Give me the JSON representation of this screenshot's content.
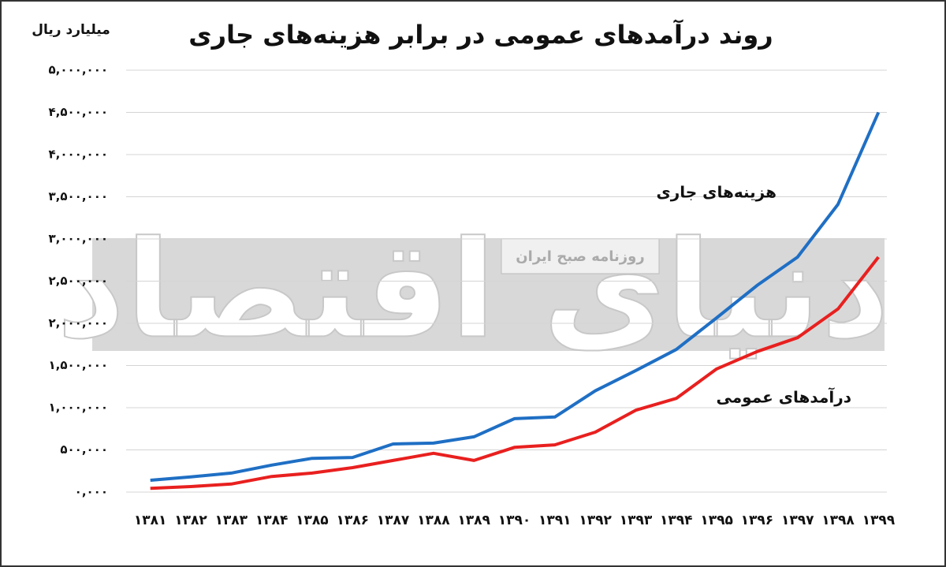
{
  "chart_data": {
    "type": "line",
    "title": "روند درآمدهای عمومی در برابر هزینه‌های جاری",
    "y_label": "میلیارد ریال",
    "categories": [
      "۱۳۸۱",
      "۱۳۸۲",
      "۱۳۸۳",
      "۱۳۸۴",
      "۱۳۸۵",
      "۱۳۸۶",
      "۱۳۸۷",
      "۱۳۸۸",
      "۱۳۸۹",
      "۱۳۹۰",
      "۱۳۹۱",
      "۱۳۹۲",
      "۱۳۹۳",
      "۱۳۹۴",
      "۱۳۹۵",
      "۱۳۹۶",
      "۱۳۹۷",
      "۱۳۹۸",
      "۱۳۹۹"
    ],
    "series": [
      {
        "name": "هزینه‌های جاری",
        "color": "#1f6fc4",
        "values": [
          140000,
          180000,
          225000,
          320000,
          400000,
          410000,
          570000,
          580000,
          655000,
          870000,
          890000,
          1200000,
          1440000,
          1690000,
          2065000,
          2450000,
          2785000,
          3410000,
          4500000
        ]
      },
      {
        "name": "درآمدهای عمومی",
        "color": "#e8201f",
        "values": [
          45000,
          65000,
          95000,
          185000,
          225000,
          290000,
          375000,
          460000,
          375000,
          530000,
          560000,
          710000,
          970000,
          1110000,
          1460000,
          1665000,
          1830000,
          2170000,
          2785000
        ]
      }
    ],
    "ylim": [
      0,
      5000000
    ],
    "yticks": [
      {
        "value": 0,
        "label": "۰,۰۰۰"
      },
      {
        "value": 500000,
        "label": "۵۰۰,۰۰۰"
      },
      {
        "value": 1000000,
        "label": "۱,۰۰۰,۰۰۰"
      },
      {
        "value": 1500000,
        "label": "۱,۵۰۰,۰۰۰"
      },
      {
        "value": 2000000,
        "label": "۲,۰۰۰,۰۰۰"
      },
      {
        "value": 2500000,
        "label": "۲,۵۰۰,۰۰۰"
      },
      {
        "value": 3000000,
        "label": "۳,۰۰۰,۰۰۰"
      },
      {
        "value": 3500000,
        "label": "۳,۵۰۰,۰۰۰"
      },
      {
        "value": 4000000,
        "label": "۴,۰۰۰,۰۰۰"
      },
      {
        "value": 4500000,
        "label": "۴,۵۰۰,۰۰۰"
      },
      {
        "value": 5000000,
        "label": "۵,۰۰۰,۰۰۰"
      }
    ],
    "grid": true
  },
  "watermark": {
    "logo": "دنیای اقتصاد",
    "tagline": "روزنامه صبح ایران"
  }
}
